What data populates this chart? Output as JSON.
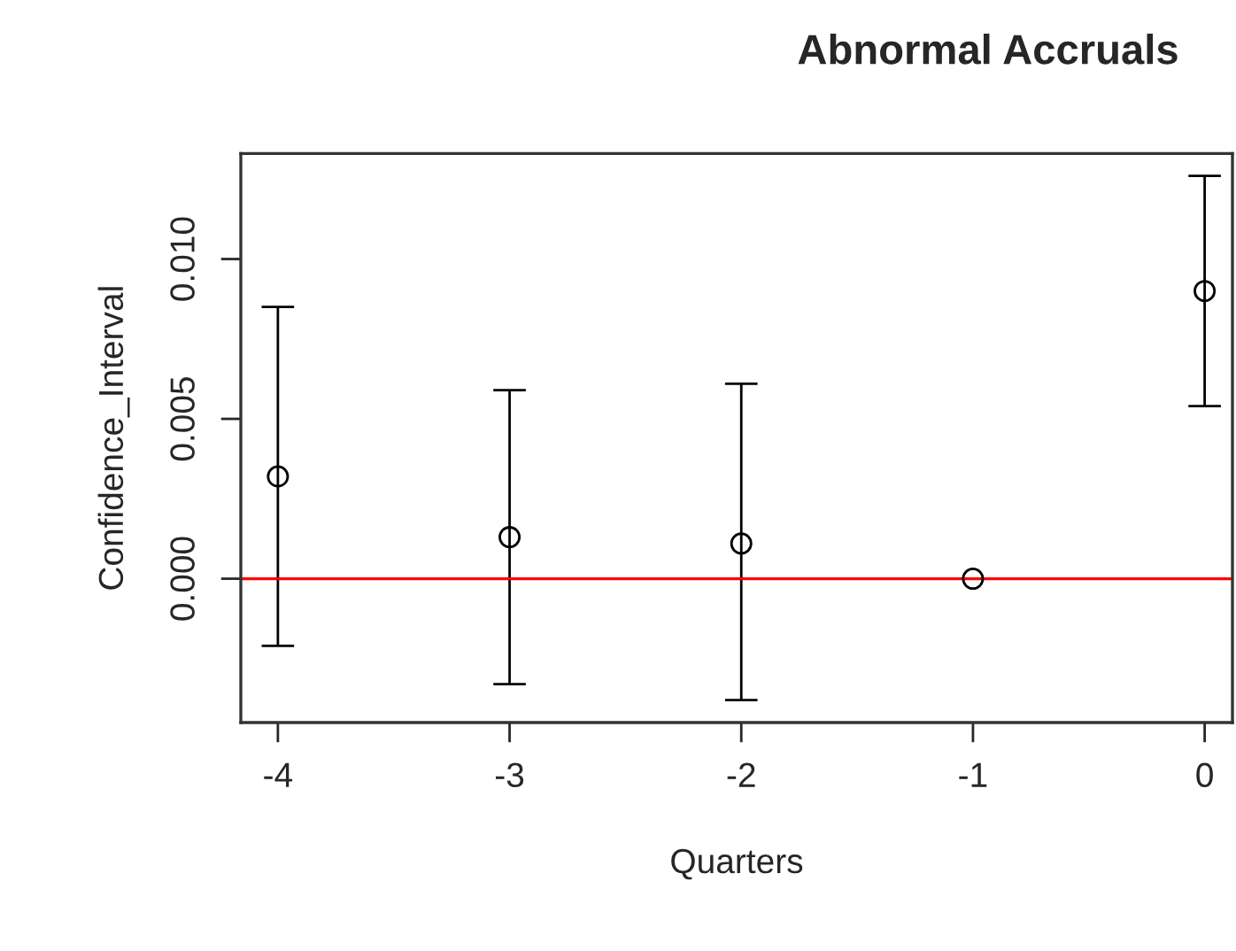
{
  "chart_data": {
    "type": "scatter",
    "title": "Abnormal Accruals",
    "xlabel": "Quarters",
    "ylabel": "Confidence_Interval",
    "x": [
      -4,
      -3,
      -2,
      -1,
      0
    ],
    "series": [
      {
        "color": "#000000",
        "values": [
          0.0032,
          0.0013,
          0.0011,
          0.0,
          0.009
        ],
        "errors": [
          [
            -0.0021,
            0.0085
          ],
          [
            -0.0033,
            0.0059
          ],
          [
            -0.0038,
            0.0061
          ],
          null,
          [
            0.0054,
            0.0126
          ]
        ]
      }
    ],
    "marker": "circle",
    "xlim": [
      -4.16,
      0.12
    ],
    "xticks": [
      -4,
      -3,
      -2,
      -1,
      0
    ],
    "ylim": [
      -0.0045,
      0.0133
    ],
    "yticks": [
      {
        "value": 0,
        "label": "0.000"
      },
      {
        "value": 0.005,
        "label": "0.005"
      },
      {
        "value": 0.01,
        "label": "0.010"
      }
    ],
    "ref_lines": [
      {
        "axis": "y",
        "value": 0,
        "color": "#ff0000"
      }
    ],
    "grid": false,
    "legend": false
  }
}
